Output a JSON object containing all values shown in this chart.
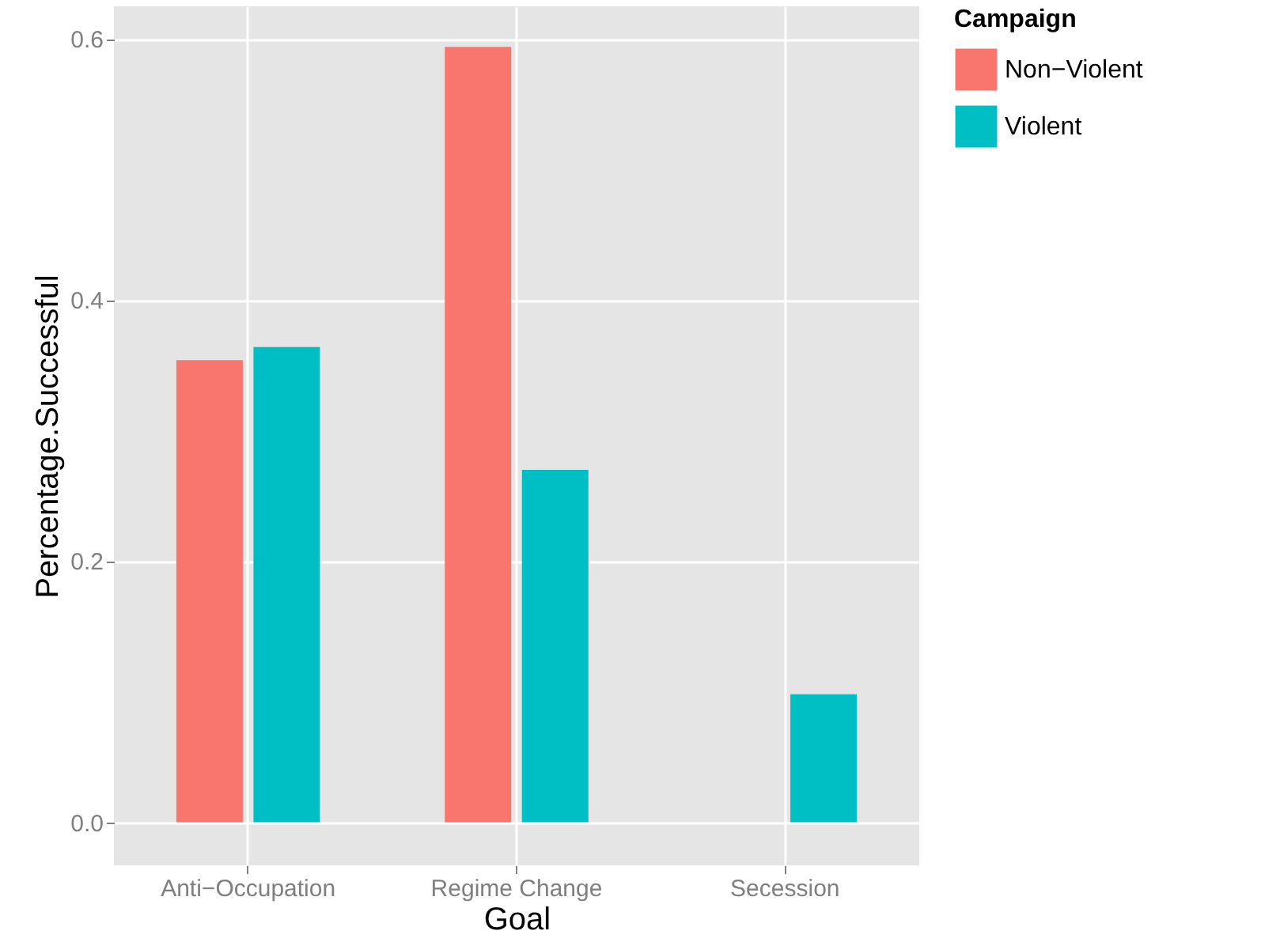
{
  "chart_data": {
    "type": "bar",
    "xlabel": "Goal",
    "ylabel": "Percentage.Successful",
    "legend_title": "Campaign",
    "categories": [
      "Anti−Occupation",
      "Regime Change",
      "Secession"
    ],
    "series": [
      {
        "name": "Non−Violent",
        "color": "#f8766d",
        "values": [
          0.354,
          0.594,
          0.0
        ]
      },
      {
        "name": "Violent",
        "color": "#00bfc4",
        "values": [
          0.364,
          0.27,
          0.098
        ]
      }
    ],
    "ylim": [
      -0.033,
      0.625
    ],
    "yticks": [
      {
        "value": 0,
        "label": "0.0"
      },
      {
        "value": 0.2,
        "label": "0.2"
      },
      {
        "value": 0.4,
        "label": "0.4"
      },
      {
        "value": 0.6,
        "label": "0.6"
      }
    ],
    "grid": true,
    "legend": "right"
  }
}
